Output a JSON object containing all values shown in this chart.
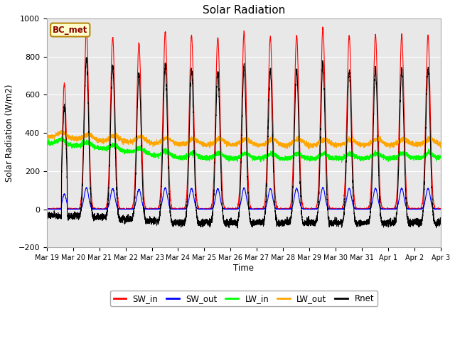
{
  "title": "Solar Radiation",
  "ylabel": "Solar Radiation (W/m2)",
  "xlabel": "Time",
  "ylim": [
    -200,
    1000
  ],
  "yticks": [
    -200,
    0,
    200,
    400,
    600,
    800,
    1000
  ],
  "background_color": "#e8e8e8",
  "figure_color": "#ffffff",
  "station_label": "BC_met",
  "x_tick_labels": [
    "Mar 19",
    "Mar 20",
    "Mar 21",
    "Mar 22",
    "Mar 23",
    "Mar 24",
    "Mar 25",
    "Mar 26",
    "Mar 27",
    "Mar 28",
    "Mar 29",
    "Mar 30",
    "Mar 31",
    "Apr 1",
    "Apr 2",
    "Apr 3"
  ],
  "legend_entries": [
    "SW_in",
    "SW_out",
    "LW_in",
    "LW_out",
    "Rnet"
  ],
  "n_days": 15,
  "pts_per_day": 288
}
